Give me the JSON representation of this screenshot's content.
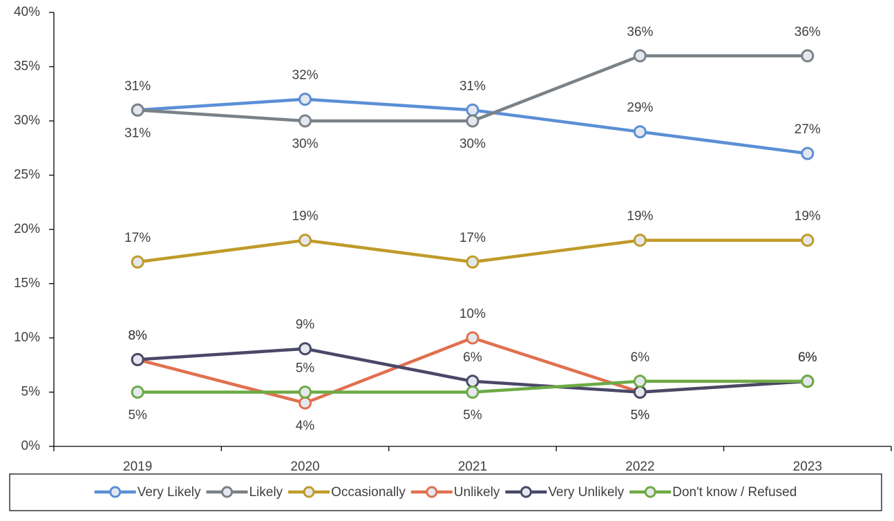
{
  "chart_data": {
    "type": "line",
    "categories": [
      "2019",
      "2020",
      "2021",
      "2022",
      "2023"
    ],
    "series": [
      {
        "name": "Very Likely",
        "color": "#5b8fd6",
        "values": [
          31,
          32,
          31,
          29,
          27
        ],
        "value_labels": [
          "31%",
          "32%",
          "31%",
          "29%",
          "27%"
        ]
      },
      {
        "name": "Likely",
        "color": "#7a8287",
        "values": [
          31,
          30,
          30,
          36,
          36
        ],
        "value_labels": [
          "31%",
          "30%",
          "30%",
          "36%",
          "36%"
        ]
      },
      {
        "name": "Occasionally",
        "color": "#bf9b2a",
        "values": [
          17,
          19,
          17,
          19,
          19
        ],
        "value_labels": [
          "17%",
          "19%",
          "17%",
          "19%",
          "19%"
        ]
      },
      {
        "name": "Unlikely",
        "color": "#e0704f",
        "values": [
          8,
          4,
          10,
          5,
          6
        ],
        "value_labels": [
          "8%",
          "4%",
          "10%",
          "5%",
          "6%"
        ]
      },
      {
        "name": "Very Unlikely",
        "color": "#4a4868",
        "values": [
          8,
          9,
          6,
          5,
          6
        ],
        "value_labels": [
          "8%",
          "9%",
          "6%",
          "5%",
          "6%"
        ]
      },
      {
        "name": "Don't know / Refused",
        "color": "#6daa45",
        "values": [
          5,
          5,
          5,
          6,
          6
        ],
        "value_labels": [
          "5%",
          "5%",
          "5%",
          "6%",
          "6%"
        ]
      }
    ],
    "ylim": [
      0,
      40
    ],
    "yticks": [
      {
        "value": 0,
        "label": "0%"
      },
      {
        "value": 5,
        "label": "5%"
      },
      {
        "value": 10,
        "label": "10%"
      },
      {
        "value": 15,
        "label": "15%"
      },
      {
        "value": 20,
        "label": "20%"
      },
      {
        "value": 25,
        "label": "25%"
      },
      {
        "value": 30,
        "label": "30%"
      },
      {
        "value": 35,
        "label": "35%"
      },
      {
        "value": 40,
        "label": "40%"
      }
    ],
    "grid": false,
    "legend": "bottom"
  }
}
